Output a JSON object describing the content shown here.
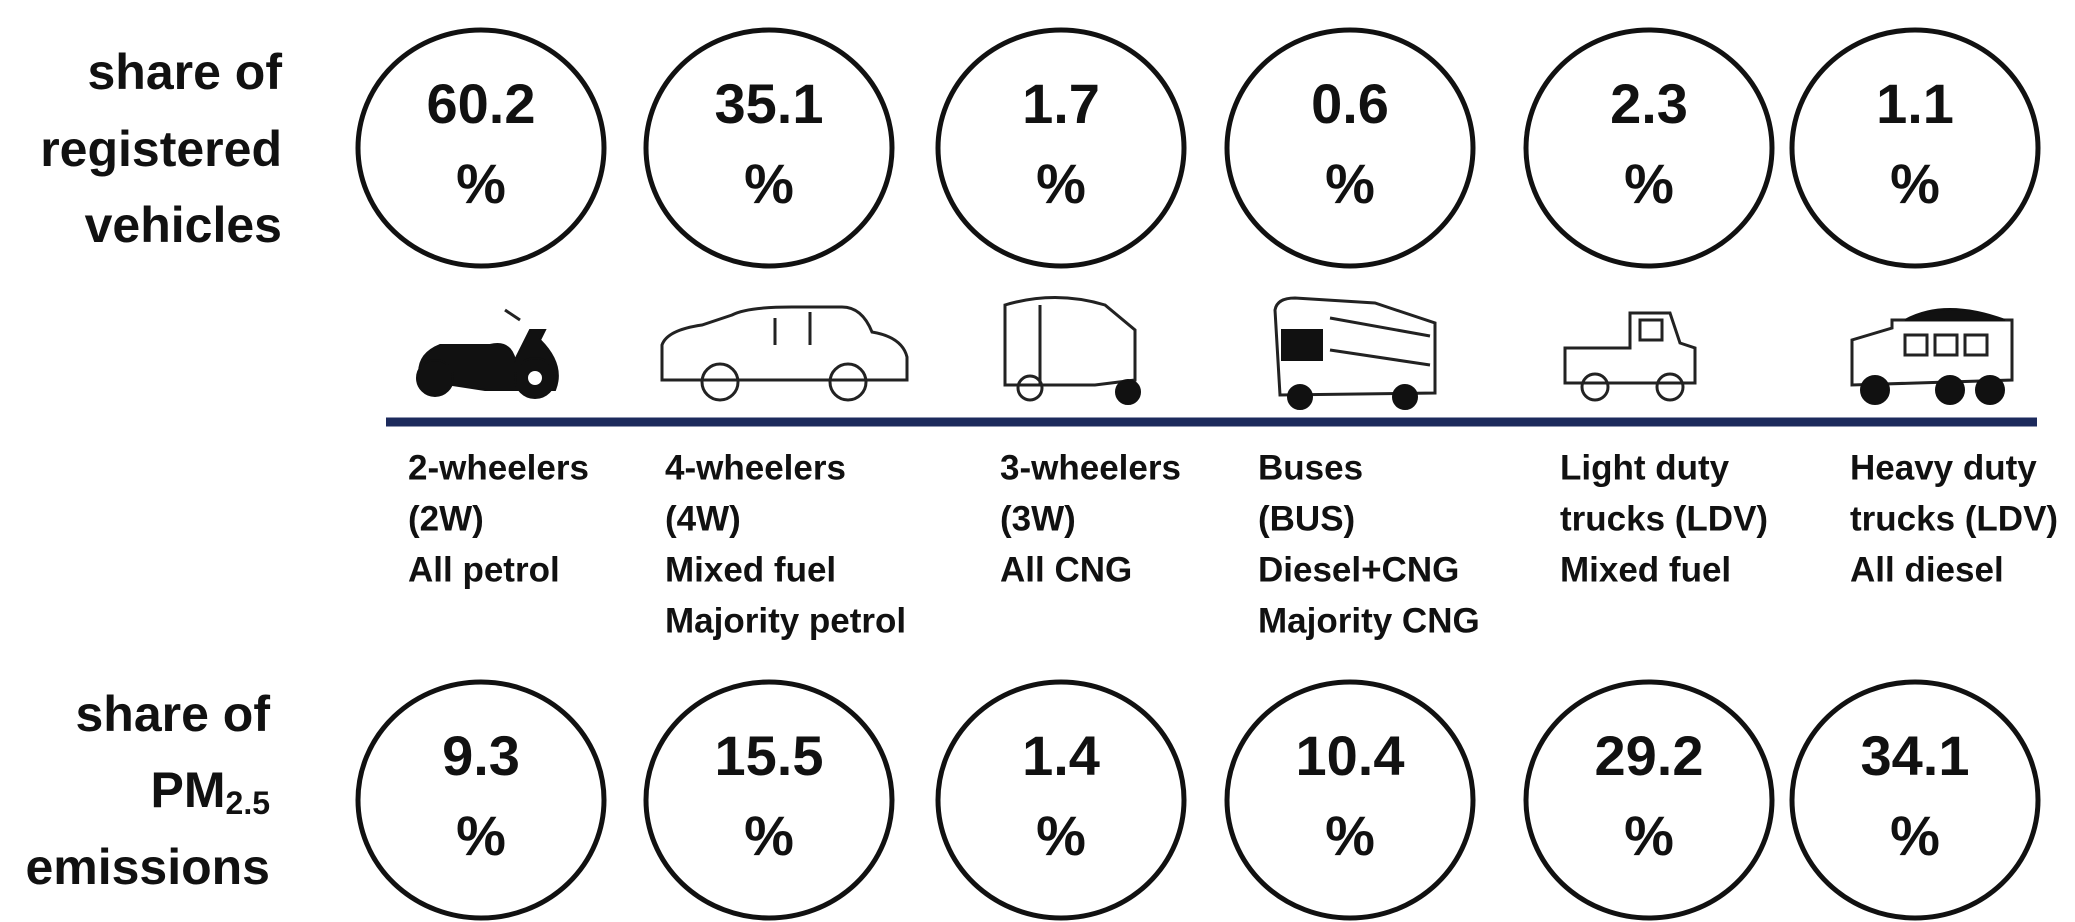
{
  "rows": [
    {
      "label_lines": [
        "share of",
        "registered",
        "vehicles"
      ],
      "values": [
        60.2,
        35.1,
        1.7,
        0.6,
        2.3,
        1.1
      ],
      "unit": "%"
    },
    {
      "label_lines": [
        "share of",
        "emissions"
      ],
      "label_pm": "PM",
      "label_sub": "2.5",
      "values": [
        9.3,
        15.5,
        1.4,
        10.4,
        29.2,
        34.1
      ],
      "unit": "%"
    }
  ],
  "vehicles": [
    {
      "lines": [
        "2-wheelers",
        "(2W)",
        "All petrol"
      ]
    },
    {
      "lines": [
        "4-wheelers",
        "(4W)",
        "Mixed fuel",
        "Majority petrol"
      ]
    },
    {
      "lines": [
        "3-wheelers",
        "(3W)",
        "All CNG"
      ]
    },
    {
      "lines": [
        "Buses",
        "(BUS)",
        "Diesel+CNG",
        "Majority CNG"
      ]
    },
    {
      "lines": [
        "Light duty",
        "trucks (LDV)",
        "Mixed fuel"
      ]
    },
    {
      "lines": [
        "Heavy duty",
        "trucks (LDV)",
        "All diesel"
      ]
    }
  ]
}
